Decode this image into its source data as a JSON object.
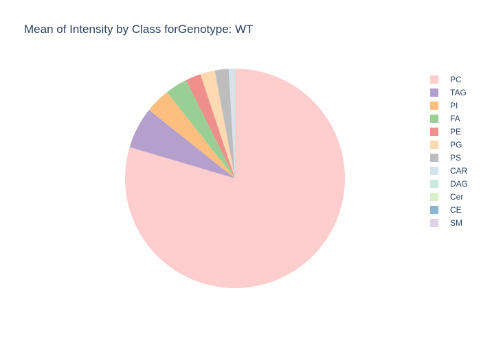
{
  "chart_data": {
    "type": "pie",
    "title": "Mean of Intensity by Class forGenotype: WT",
    "slices": [
      {
        "label": "PC",
        "value": 78.0,
        "color": "#fecdcd"
      },
      {
        "label": "TAG",
        "value": 6.0,
        "color": "#b49fcd"
      },
      {
        "label": "PI",
        "value": 3.6,
        "color": "#fdbf80"
      },
      {
        "label": "FA",
        "value": 3.2,
        "color": "#99cf95"
      },
      {
        "label": "PE",
        "value": 2.2,
        "color": "#ee8f8c"
      },
      {
        "label": "PG",
        "value": 2.1,
        "color": "#fed9b2"
      },
      {
        "label": "PS",
        "value": 2.0,
        "color": "#bdbdbd"
      },
      {
        "label": "CAR",
        "value": 0.7,
        "color": "#d1e4ee"
      },
      {
        "label": "DAG",
        "value": 0.1,
        "color": "#c7e9e0"
      },
      {
        "label": "Cer",
        "value": 0.05,
        "color": "#d8f0c8"
      },
      {
        "label": "CE",
        "value": 0.03,
        "color": "#8ab6d4"
      },
      {
        "label": "SM",
        "value": 0.02,
        "color": "#e0d3e8"
      }
    ],
    "legend_position": "right",
    "direction": "clockwise",
    "start_angle": "top"
  }
}
